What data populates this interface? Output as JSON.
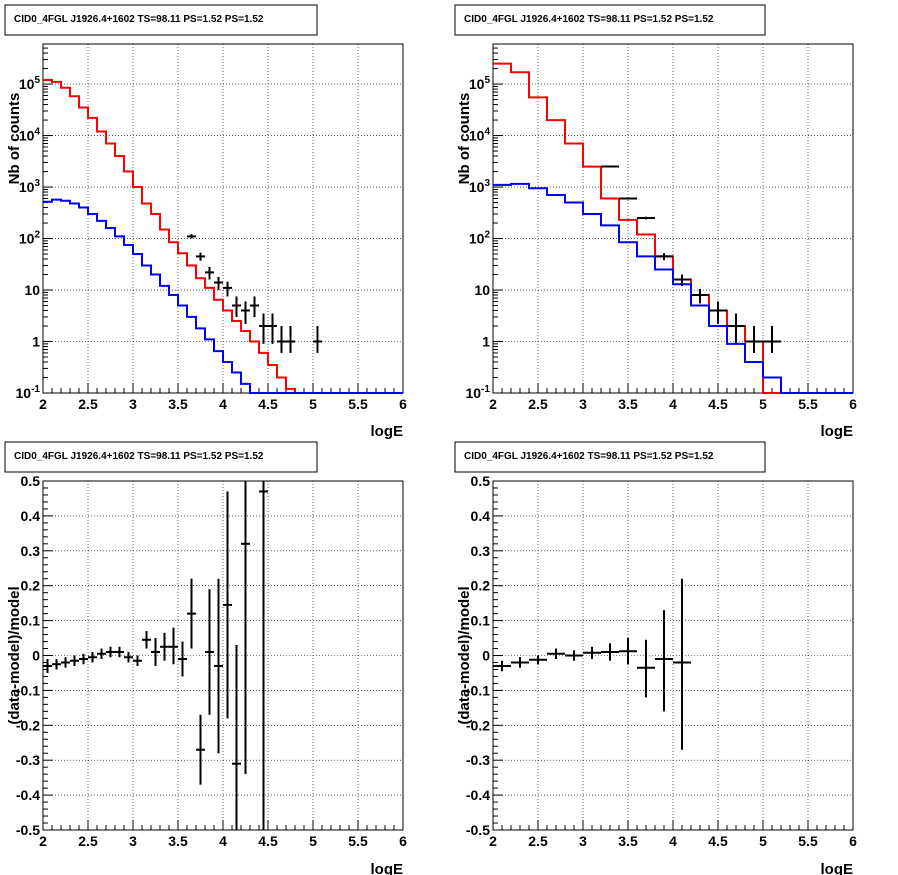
{
  "chart_data": [
    {
      "type": "line",
      "title": "CID0_4FGL J1926.4+1602 TS=98.11 PS=1.52 PS=1.52",
      "xlabel": "logE",
      "ylabel": "Nb of counts",
      "yscale": "log",
      "xlim": [
        2,
        6
      ],
      "ylim": [
        0.1,
        600000
      ],
      "grid": true,
      "x_ticks": [
        "2",
        "2.5",
        "3",
        "3.5",
        "4",
        "4.5",
        "5",
        "5.5",
        "6"
      ],
      "y_ticks": [
        {
          "base": "10",
          "exp": "-1"
        },
        {
          "base": "1",
          "exp": ""
        },
        {
          "base": "10",
          "exp": ""
        },
        {
          "base": "10",
          "exp": "2"
        },
        {
          "base": "10",
          "exp": "3"
        },
        {
          "base": "10",
          "exp": "4"
        },
        {
          "base": "10",
          "exp": "5"
        }
      ],
      "series": [
        {
          "color": "#ff0000",
          "bin_width": 0.1,
          "x": [
            2.0,
            2.1,
            2.2,
            2.3,
            2.4,
            2.5,
            2.6,
            2.7,
            2.8,
            2.9,
            3.0,
            3.1,
            3.2,
            3.3,
            3.4,
            3.5,
            3.6,
            3.7,
            3.8,
            3.9,
            4.0,
            4.1,
            4.2,
            4.3,
            4.4,
            4.5,
            4.6,
            4.7,
            4.8,
            4.9,
            5.0,
            5.1,
            5.2,
            5.3,
            5.4,
            5.5,
            5.6,
            5.7,
            5.8,
            5.9
          ],
          "values": [
            120000,
            110000,
            85000,
            58000,
            35000,
            22000,
            12000,
            7000,
            4000,
            2000,
            1000,
            480,
            300,
            150,
            85,
            52,
            30,
            17,
            11,
            6.5,
            4,
            2.5,
            1.6,
            1.0,
            0.6,
            0.35,
            0.2,
            0.12,
            0.1,
            0.1,
            0.1,
            0.1,
            0.1,
            0.1,
            0.1,
            0.1,
            0.1,
            0.1,
            0.1,
            0.1
          ]
        },
        {
          "color": "#0000ff",
          "bin_width": 0.1,
          "x": [
            2.0,
            2.1,
            2.2,
            2.3,
            2.4,
            2.5,
            2.6,
            2.7,
            2.8,
            2.9,
            3.0,
            3.1,
            3.2,
            3.3,
            3.4,
            3.5,
            3.6,
            3.7,
            3.8,
            3.9,
            4.0,
            4.1,
            4.2,
            4.3,
            4.4,
            4.5,
            4.6,
            4.7,
            4.8,
            4.9,
            5.0,
            5.1,
            5.2,
            5.3,
            5.4,
            5.5,
            5.6,
            5.7,
            5.8,
            5.9
          ],
          "values": [
            520,
            570,
            540,
            480,
            400,
            300,
            220,
            160,
            110,
            75,
            50,
            30,
            20,
            12,
            8,
            5,
            3,
            1.8,
            1.1,
            0.65,
            0.4,
            0.25,
            0.15,
            0.1,
            0.1,
            0.1,
            0.1,
            0.1,
            0.1,
            0.1,
            0.1,
            0.1,
            0.1,
            0.1,
            0.1,
            0.1,
            0.1,
            0.1,
            0.1,
            0.1
          ]
        },
        {
          "color": "#000000",
          "style": "errorbar",
          "half_width": 0.05,
          "x": [
            3.65,
            3.75,
            3.85,
            3.95,
            4.05,
            4.15,
            4.25,
            4.35,
            4.45,
            4.55,
            4.65,
            4.75,
            5.05
          ],
          "values": [
            110,
            45,
            22,
            14,
            11,
            5,
            4,
            5,
            2,
            2,
            1,
            1,
            1
          ],
          "err_low": [
            100,
            37,
            16,
            10,
            7.5,
            3,
            2.2,
            3,
            0.9,
            0.9,
            0.6,
            0.6,
            0.6
          ],
          "err_high": [
            121,
            53,
            28,
            18,
            14.5,
            7.5,
            6,
            7.5,
            3.5,
            3.5,
            2,
            2,
            2
          ]
        }
      ]
    },
    {
      "type": "line",
      "title": "CID0_4FGL J1926.4+1602 TS=98.11 PS=1.52 PS=1.52",
      "xlabel": "logE",
      "ylabel": "Nb of counts",
      "yscale": "log",
      "xlim": [
        2,
        6
      ],
      "ylim": [
        0.1,
        600000
      ],
      "grid": true,
      "x_ticks": [
        "2",
        "2.5",
        "3",
        "3.5",
        "4",
        "4.5",
        "5",
        "5.5",
        "6"
      ],
      "y_ticks": [
        {
          "base": "10",
          "exp": "-1"
        },
        {
          "base": "1",
          "exp": ""
        },
        {
          "base": "10",
          "exp": ""
        },
        {
          "base": "10",
          "exp": "2"
        },
        {
          "base": "10",
          "exp": "3"
        },
        {
          "base": "10",
          "exp": "4"
        },
        {
          "base": "10",
          "exp": "5"
        }
      ],
      "series": [
        {
          "color": "#ff0000",
          "bin_width": 0.2,
          "x": [
            2.0,
            2.2,
            2.4,
            2.6,
            2.8,
            3.0,
            3.2,
            3.4,
            3.6,
            3.8,
            4.0,
            4.2,
            4.4,
            4.6,
            4.8,
            5.0,
            5.2,
            5.4,
            5.6,
            5.8
          ],
          "values": [
            250000,
            170000,
            55000,
            20000,
            7000,
            2500,
            600,
            230,
            120,
            45,
            16,
            8,
            4,
            2,
            1,
            0.1,
            0.1,
            0.1,
            0.1,
            0.1
          ]
        },
        {
          "color": "#0000ff",
          "bin_width": 0.2,
          "x": [
            2.0,
            2.2,
            2.4,
            2.6,
            2.8,
            3.0,
            3.2,
            3.4,
            3.6,
            3.8,
            4.0,
            4.2,
            4.4,
            4.6,
            4.8,
            5.0,
            5.2,
            5.4,
            5.6,
            5.8
          ],
          "values": [
            1100,
            1150,
            950,
            700,
            500,
            300,
            180,
            85,
            45,
            25,
            13,
            5,
            2,
            0.9,
            0.4,
            0.2,
            0.1,
            0.1,
            0.1,
            0.1
          ]
        },
        {
          "color": "#000000",
          "style": "errorbar",
          "half_width": 0.1,
          "x": [
            3.3,
            3.5,
            3.7,
            3.9,
            4.1,
            4.3,
            4.5,
            4.7,
            4.9,
            5.1
          ],
          "values": [
            2500,
            600,
            250,
            45,
            16,
            8,
            4,
            2,
            1,
            1
          ],
          "err_low": [
            2450,
            575,
            235,
            38,
            12,
            5.5,
            2.2,
            0.9,
            0.6,
            0.6
          ],
          "err_high": [
            2550,
            625,
            265,
            52,
            20,
            10.5,
            6,
            3.5,
            2,
            2
          ]
        }
      ]
    },
    {
      "type": "scatter",
      "title": "CID0_4FGL J1926.4+1602 TS=98.11 PS=1.52 PS=1.52",
      "xlabel": "logE",
      "ylabel": "(data-model)/model",
      "xlim": [
        2,
        6
      ],
      "ylim": [
        -0.5,
        0.5
      ],
      "grid": true,
      "x_ticks": [
        "2",
        "2.5",
        "3",
        "3.5",
        "4",
        "4.5",
        "5",
        "5.5",
        "6"
      ],
      "y_ticks": [
        "-0.5",
        "-0.4",
        "-0.3",
        "-0.2",
        "-0.1",
        "0",
        "0.1",
        "0.2",
        "0.3",
        "0.4",
        "0.5"
      ],
      "series": [
        {
          "color": "#000000",
          "style": "errorbar",
          "half_width": 0.05,
          "x": [
            2.05,
            2.15,
            2.25,
            2.35,
            2.45,
            2.55,
            2.65,
            2.75,
            2.85,
            2.95,
            3.05,
            3.15,
            3.25,
            3.35,
            3.45,
            3.55,
            3.65,
            3.75,
            3.85,
            3.95,
            4.05,
            4.15,
            4.25,
            4.45
          ],
          "values": [
            -0.03,
            -0.025,
            -0.02,
            -0.015,
            -0.01,
            -0.005,
            0.005,
            0.01,
            0.01,
            -0.005,
            -0.015,
            0.045,
            0.01,
            0.025,
            0.025,
            -0.01,
            0.12,
            -0.27,
            0.01,
            -0.03,
            0.145,
            -0.31,
            0.32,
            0.47
          ],
          "err_low": [
            -0.05,
            -0.04,
            -0.035,
            -0.03,
            -0.025,
            -0.02,
            -0.01,
            -0.005,
            -0.005,
            -0.02,
            -0.03,
            0.02,
            -0.03,
            -0.015,
            -0.025,
            -0.06,
            0.02,
            -0.37,
            -0.17,
            -0.28,
            -0.18,
            -0.52,
            -0.34,
            -0.52
          ],
          "err_high": [
            -0.01,
            -0.01,
            -0.005,
            0.0,
            0.005,
            0.01,
            0.02,
            0.025,
            0.025,
            0.01,
            0.0,
            0.07,
            0.05,
            0.065,
            0.08,
            0.04,
            0.22,
            -0.17,
            0.19,
            0.22,
            0.47,
            0.03,
            0.5,
            0.5
          ]
        }
      ]
    },
    {
      "type": "scatter",
      "title": "CID0_4FGL J1926.4+1602 TS=98.11 PS=1.52 PS=1.52",
      "xlabel": "logE",
      "ylabel": "(data-model)/model",
      "xlim": [
        2,
        6
      ],
      "ylim": [
        -0.5,
        0.5
      ],
      "grid": true,
      "x_ticks": [
        "2",
        "2.5",
        "3",
        "3.5",
        "4",
        "4.5",
        "5",
        "5.5",
        "6"
      ],
      "y_ticks": [
        "-0.5",
        "-0.4",
        "-0.3",
        "-0.2",
        "-0.1",
        "0",
        "0.1",
        "0.2",
        "0.3",
        "0.4",
        "0.5"
      ],
      "series": [
        {
          "color": "#000000",
          "style": "errorbar",
          "half_width": 0.1,
          "x": [
            2.1,
            2.3,
            2.5,
            2.7,
            2.9,
            3.1,
            3.3,
            3.5,
            3.7,
            3.9,
            4.1
          ],
          "values": [
            -0.03,
            -0.02,
            -0.012,
            0.005,
            0.0,
            0.008,
            0.01,
            0.012,
            -0.035,
            -0.01,
            -0.02
          ],
          "err_low": [
            -0.045,
            -0.035,
            -0.025,
            -0.01,
            -0.015,
            -0.01,
            -0.015,
            -0.025,
            -0.12,
            -0.16,
            -0.27
          ],
          "err_high": [
            -0.015,
            -0.005,
            0.0,
            0.02,
            0.015,
            0.025,
            0.035,
            0.05,
            0.045,
            0.13,
            0.22
          ]
        }
      ]
    }
  ]
}
